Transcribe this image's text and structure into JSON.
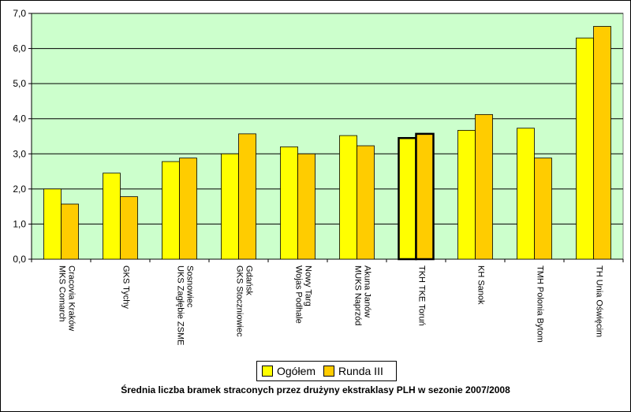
{
  "chart_data": {
    "type": "bar",
    "title": "Średnia liczba bramek straconych przez drużyny ekstraklasy PLH w sezonie 2007/2008",
    "categories": [
      [
        "MKS Comarch",
        "Cracovia Kraków"
      ],
      [
        "GKS Tychy"
      ],
      [
        "UKS Zagłębie ZSME",
        "Sosnowiec"
      ],
      [
        "GKS Stoczniowiec",
        "Gdańsk"
      ],
      [
        "Wojas Podhale",
        "Nowy Targ"
      ],
      [
        "MUKS Naprzód",
        "Akuna Janów"
      ],
      [
        "TKH TKE Toruń"
      ],
      [
        "KH Sanok"
      ],
      [
        "TMH Polonia Bytom"
      ],
      [
        "TH Unia Oświęcim"
      ]
    ],
    "series": [
      {
        "name": "Ogółem",
        "color": "#ffff00",
        "values": [
          2.0,
          2.45,
          2.78,
          3.0,
          3.2,
          3.52,
          3.45,
          3.67,
          3.73,
          6.3
        ]
      },
      {
        "name": "Runda III",
        "color": "#ffcc00",
        "values": [
          1.57,
          1.78,
          2.88,
          3.57,
          3.0,
          3.23,
          3.57,
          4.12,
          2.88,
          6.63
        ]
      }
    ],
    "highlight_index": 6,
    "ylim": [
      0,
      7
    ],
    "yticks": [
      "0,0",
      "1,0",
      "2,0",
      "3,0",
      "4,0",
      "5,0",
      "6,0",
      "7,0"
    ],
    "plot_background": "#ccffcc",
    "grid": true,
    "legend_position": "bottom"
  }
}
